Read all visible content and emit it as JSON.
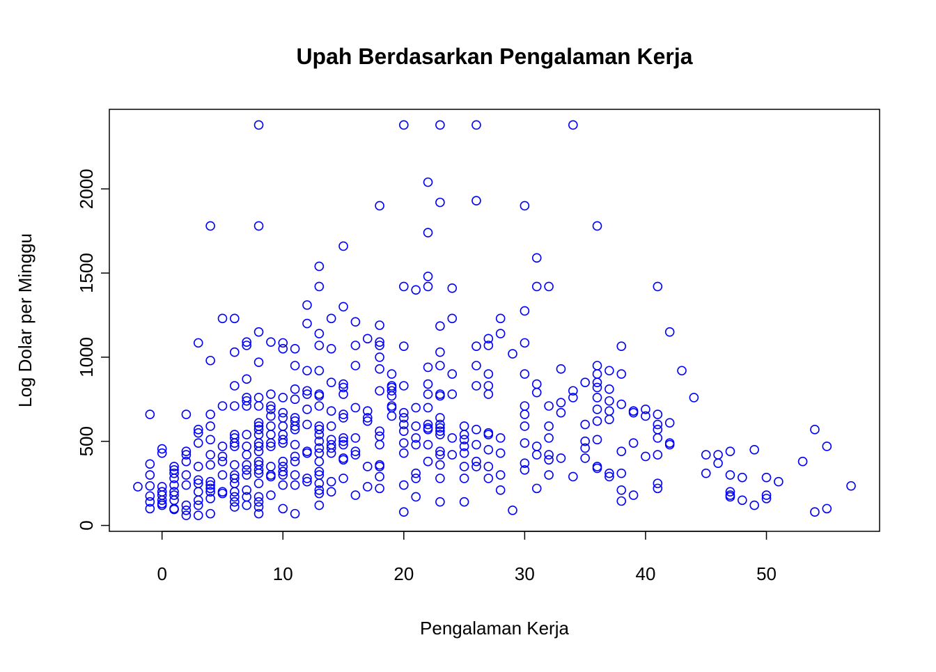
{
  "chart_data": {
    "type": "scatter",
    "title": "Upah Berdasarkan Pengalaman Kerja",
    "x_label": "Pengalaman Kerja",
    "y_label": "Log Dolar per Minggu",
    "color": "#0000ff",
    "xlim": [
      -4.36,
      59.36
    ],
    "ylim": [
      -35,
      2473
    ],
    "xticks": [
      0,
      10,
      20,
      30,
      40,
      50
    ],
    "yticks": [
      0,
      500,
      1000,
      1500,
      2000
    ],
    "x": [
      -2,
      -1,
      -1,
      -1,
      -1,
      -1,
      -1,
      -1,
      0,
      0,
      0,
      0,
      0,
      0,
      0,
      0,
      1,
      1,
      1,
      1,
      1,
      1,
      1,
      1,
      1,
      1,
      2,
      2,
      2,
      2,
      2,
      2,
      2,
      2,
      2,
      3,
      3,
      3,
      3,
      3,
      3,
      3,
      3,
      3,
      3,
      3,
      4,
      4,
      4,
      4,
      4,
      4,
      4,
      4,
      4,
      4,
      4,
      4,
      4,
      5,
      5,
      5,
      5,
      5,
      5,
      5,
      5,
      6,
      6,
      6,
      6,
      6,
      6,
      6,
      6,
      6,
      6,
      6,
      6,
      6,
      6,
      6,
      6,
      7,
      7,
      7,
      7,
      7,
      7,
      7,
      7,
      7,
      7,
      7,
      7,
      7,
      7,
      7,
      8,
      8,
      8,
      8,
      8,
      8,
      8,
      8,
      8,
      8,
      8,
      8,
      8,
      8,
      8,
      8,
      8,
      8,
      8,
      8,
      8,
      8,
      9,
      9,
      9,
      9,
      9,
      9,
      9,
      9,
      9,
      9,
      9,
      9,
      9,
      10,
      10,
      10,
      10,
      10,
      10,
      10,
      10,
      10,
      10,
      10,
      10,
      10,
      10,
      10,
      11,
      11,
      11,
      11,
      11,
      11,
      11,
      11,
      11,
      11,
      11,
      11,
      11,
      11,
      12,
      12,
      12,
      12,
      12,
      12,
      12,
      12,
      12,
      12,
      12,
      13,
      13,
      13,
      13,
      13,
      13,
      13,
      13,
      13,
      13,
      13,
      13,
      13,
      13,
      13,
      13,
      13,
      13,
      13,
      13,
      13,
      14,
      14,
      14,
      14,
      14,
      14,
      14,
      14,
      14,
      14,
      14,
      15,
      15,
      15,
      15,
      15,
      15,
      15,
      15,
      15,
      15,
      15,
      15,
      15,
      16,
      16,
      16,
      16,
      16,
      16,
      16,
      16,
      17,
      17,
      17,
      17,
      17,
      17,
      18,
      18,
      18,
      18,
      18,
      18,
      18,
      18,
      18,
      18,
      18,
      18,
      18,
      18,
      19,
      19,
      19,
      19,
      19,
      19,
      19,
      19,
      20,
      20,
      20,
      20,
      20,
      20,
      20,
      20,
      20,
      20,
      20,
      20,
      21,
      21,
      21,
      21,
      21,
      21,
      21,
      21,
      22,
      22,
      22,
      22,
      22,
      22,
      22,
      22,
      22,
      22,
      22,
      22,
      22,
      23,
      23,
      23,
      23,
      23,
      23,
      23,
      23,
      23,
      23,
      23,
      23,
      23,
      23,
      23,
      23,
      23,
      24,
      24,
      24,
      24,
      24,
      24,
      25,
      25,
      25,
      25,
      25,
      25,
      25,
      25,
      26,
      26,
      26,
      26,
      26,
      26,
      26,
      26,
      26,
      27,
      27,
      27,
      27,
      27,
      27,
      27,
      27,
      27,
      27,
      28,
      28,
      28,
      28,
      28,
      28,
      29,
      29,
      30,
      30,
      30,
      30,
      30,
      30,
      30,
      30,
      30,
      30,
      31,
      31,
      31,
      31,
      31,
      31,
      31,
      32,
      32,
      32,
      32,
      32,
      32,
      32,
      33,
      33,
      33,
      33,
      34,
      34,
      34,
      34,
      35,
      35,
      35,
      35,
      35,
      36,
      36,
      36,
      36,
      36,
      36,
      36,
      36,
      36,
      36,
      36,
      37,
      37,
      37,
      37,
      37,
      37,
      37,
      38,
      38,
      38,
      38,
      38,
      38,
      38,
      39,
      39,
      39,
      39,
      40,
      40,
      40,
      41,
      41,
      41,
      41,
      41,
      41,
      41,
      41,
      42,
      42,
      42,
      42,
      43,
      44,
      45,
      45,
      46,
      46,
      47,
      47,
      47,
      47,
      47,
      48,
      48,
      49,
      49,
      50,
      50,
      50,
      51,
      53,
      54,
      54,
      55,
      55,
      57
    ],
    "y": [
      230,
      660,
      365,
      300,
      235,
      175,
      140,
      100,
      455,
      430,
      230,
      200,
      180,
      150,
      130,
      120,
      350,
      330,
      310,
      280,
      240,
      200,
      180,
      150,
      100,
      95,
      660,
      440,
      420,
      380,
      300,
      240,
      120,
      90,
      60,
      1085,
      570,
      550,
      490,
      350,
      270,
      250,
      200,
      150,
      120,
      60,
      1780,
      980,
      660,
      590,
      510,
      420,
      360,
      260,
      240,
      220,
      200,
      160,
      70,
      1230,
      710,
      470,
      410,
      380,
      300,
      200,
      190,
      1230,
      1030,
      830,
      710,
      540,
      520,
      490,
      470,
      360,
      300,
      280,
      250,
      200,
      170,
      140,
      110,
      1090,
      1070,
      870,
      760,
      740,
      710,
      540,
      470,
      420,
      360,
      330,
      300,
      210,
      170,
      120,
      2380,
      1780,
      1150,
      970,
      760,
      710,
      610,
      590,
      570,
      540,
      490,
      470,
      440,
      380,
      360,
      330,
      310,
      250,
      170,
      140,
      110,
      70,
      1090,
      780,
      710,
      690,
      650,
      590,
      540,
      490,
      470,
      350,
      300,
      290,
      180,
      1085,
      1050,
      760,
      670,
      640,
      590,
      540,
      510,
      490,
      380,
      350,
      320,
      300,
      240,
      100,
      1050,
      950,
      810,
      750,
      640,
      620,
      590,
      570,
      480,
      410,
      380,
      300,
      240,
      70,
      1310,
      1200,
      920,
      800,
      780,
      690,
      600,
      440,
      430,
      280,
      260,
      1540,
      1420,
      1140,
      1070,
      920,
      780,
      770,
      710,
      590,
      570,
      540,
      500,
      460,
      430,
      380,
      320,
      300,
      250,
      210,
      190,
      120,
      1230,
      1050,
      850,
      680,
      590,
      510,
      480,
      460,
      430,
      260,
      200,
      1660,
      1300,
      840,
      820,
      780,
      660,
      640,
      520,
      500,
      480,
      400,
      390,
      280,
      1210,
      1070,
      950,
      700,
      520,
      440,
      420,
      180,
      1110,
      680,
      640,
      620,
      350,
      230,
      1900,
      1190,
      1090,
      1070,
      1000,
      930,
      800,
      560,
      530,
      480,
      360,
      350,
      290,
      220,
      900,
      830,
      820,
      800,
      770,
      710,
      700,
      650,
      2380,
      1420,
      1065,
      830,
      670,
      640,
      600,
      560,
      490,
      430,
      240,
      80,
      1400,
      700,
      590,
      520,
      480,
      310,
      280,
      170,
      2040,
      1740,
      1480,
      1420,
      940,
      840,
      780,
      700,
      600,
      580,
      570,
      480,
      380,
      2380,
      1920,
      1185,
      1030,
      950,
      780,
      770,
      640,
      600,
      580,
      560,
      540,
      440,
      420,
      360,
      280,
      140,
      1410,
      1230,
      900,
      780,
      520,
      420,
      590,
      540,
      510,
      470,
      430,
      350,
      280,
      140,
      2380,
      1930,
      1065,
      950,
      830,
      570,
      480,
      380,
      350,
      1110,
      1070,
      900,
      830,
      780,
      550,
      540,
      450,
      350,
      280,
      1230,
      1140,
      520,
      430,
      300,
      210,
      1020,
      90,
      1900,
      1275,
      1085,
      900,
      710,
      660,
      590,
      490,
      370,
      330,
      1590,
      1420,
      840,
      790,
      470,
      420,
      220,
      1420,
      710,
      590,
      520,
      420,
      390,
      300,
      930,
      730,
      670,
      400,
      2380,
      800,
      760,
      290,
      850,
      600,
      500,
      460,
      400,
      1780,
      950,
      900,
      850,
      820,
      760,
      690,
      620,
      510,
      350,
      340,
      920,
      810,
      740,
      680,
      630,
      310,
      290,
      1065,
      900,
      720,
      440,
      310,
      210,
      145,
      680,
      670,
      490,
      180,
      690,
      650,
      410,
      1420,
      660,
      600,
      570,
      520,
      420,
      250,
      220,
      1150,
      610,
      490,
      480,
      920,
      760,
      420,
      310,
      420,
      370,
      440,
      300,
      200,
      180,
      170,
      285,
      150,
      450,
      120,
      285,
      180,
      160,
      260,
      380,
      570,
      80,
      470,
      100,
      235
    ]
  }
}
